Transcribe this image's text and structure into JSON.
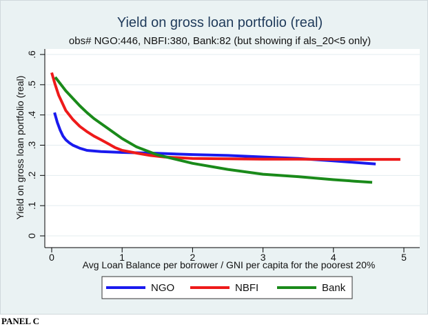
{
  "panel_label": "PANEL C",
  "chart_data": {
    "type": "line",
    "title": "Yield on gross loan portfolio (real)",
    "subtitle": "obs# NGO:446, NBFI:380, Bank:82 (but showing if als_20<5 only)",
    "xlabel": "Avg Loan Balance per borrower / GNI per capita for the poorest 20%",
    "ylabel": "Yield on gross loan portfolio (real)",
    "xlim": [
      0,
      5
    ],
    "ylim": [
      0,
      0.6
    ],
    "x_ticks": [
      0,
      1,
      2,
      3,
      4,
      5
    ],
    "x_tick_labels": [
      "0",
      "1",
      "2",
      "3",
      "4",
      "5"
    ],
    "y_ticks": [
      0,
      0.1,
      0.2,
      0.3,
      0.4,
      0.5,
      0.6
    ],
    "y_tick_labels": [
      "0",
      ".1",
      ".2",
      ".3",
      ".4",
      ".5",
      ".6"
    ],
    "grid": true,
    "legend_position": "bottom",
    "series": [
      {
        "name": "NGO",
        "color": "#1a1aee",
        "x": [
          0.04,
          0.08,
          0.12,
          0.16,
          0.2,
          0.25,
          0.3,
          0.4,
          0.5,
          0.7,
          1.0,
          1.5,
          2.0,
          2.5,
          3.0,
          3.5,
          4.0,
          4.3,
          4.6
        ],
        "y": [
          0.408,
          0.375,
          0.35,
          0.33,
          0.318,
          0.308,
          0.3,
          0.29,
          0.283,
          0.279,
          0.276,
          0.273,
          0.269,
          0.266,
          0.261,
          0.256,
          0.248,
          0.243,
          0.238
        ]
      },
      {
        "name": "NBFI",
        "color": "#ee1a1a",
        "x": [
          0.0,
          0.05,
          0.1,
          0.15,
          0.2,
          0.3,
          0.4,
          0.5,
          0.6,
          0.7,
          0.8,
          0.9,
          1.0,
          1.2,
          1.4,
          1.6,
          2.0,
          2.5,
          3.0,
          3.5,
          4.0,
          4.5,
          4.95
        ],
        "y": [
          0.54,
          0.5,
          0.465,
          0.44,
          0.415,
          0.385,
          0.362,
          0.345,
          0.33,
          0.318,
          0.305,
          0.292,
          0.283,
          0.274,
          0.266,
          0.261,
          0.256,
          0.255,
          0.254,
          0.254,
          0.253,
          0.253,
          0.253
        ]
      },
      {
        "name": "Bank",
        "color": "#1a8a1a",
        "x": [
          0.05,
          0.1,
          0.2,
          0.3,
          0.4,
          0.5,
          0.6,
          0.8,
          1.0,
          1.2,
          1.5,
          2.0,
          2.5,
          3.0,
          3.5,
          4.0,
          4.3,
          4.55
        ],
        "y": [
          0.525,
          0.51,
          0.48,
          0.455,
          0.43,
          0.408,
          0.388,
          0.355,
          0.322,
          0.295,
          0.268,
          0.24,
          0.22,
          0.204,
          0.196,
          0.186,
          0.181,
          0.177
        ]
      }
    ]
  }
}
